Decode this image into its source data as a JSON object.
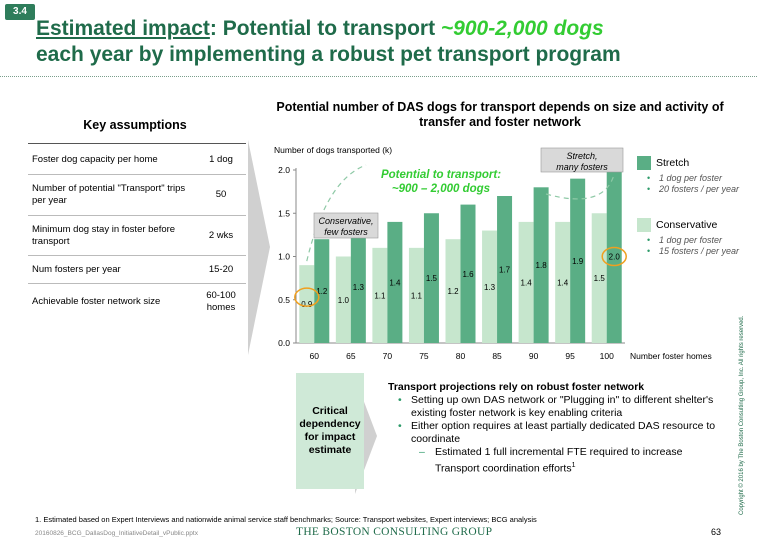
{
  "badge": "3.4",
  "title": {
    "part1": "Estimated impact",
    "part2": ": Potential to transport ",
    "highlight": "~900-2,000 dogs",
    "line2": "each year by implementing a robust pet transport program"
  },
  "assumptions": {
    "title": "Key assumptions",
    "rows": [
      {
        "label": "Foster dog capacity per home",
        "value": "1 dog"
      },
      {
        "label": "Number of potential \"Transport\" trips per year",
        "value": "50"
      },
      {
        "label": "Minimum dog stay in foster before transport",
        "value": "2 wks"
      },
      {
        "label": "Num fosters per year",
        "value": "15-20"
      },
      {
        "label": "Achievable foster network size",
        "value": "60-100 homes"
      }
    ]
  },
  "chart_title": "Potential number of DAS dogs for transport depends on size and activity of transfer and foster network",
  "chart_data": {
    "type": "bar",
    "title": "Potential number of DAS dogs for transport depends on size and activity of transfer and foster network",
    "ylabel": "Number of dogs transported (k)",
    "xlabel": "Number foster homes",
    "categories": [
      "60",
      "65",
      "70",
      "75",
      "80",
      "85",
      "90",
      "95",
      "100"
    ],
    "ylim": [
      0,
      2.0
    ],
    "yticks": [
      "0.0",
      "0.5",
      "1.0",
      "1.5",
      "2.0"
    ],
    "series": [
      {
        "name": "Conservative",
        "values": [
          0.9,
          1.0,
          1.1,
          1.1,
          1.2,
          1.3,
          1.4,
          1.4,
          1.5
        ],
        "labels": [
          "0.9",
          "1.0",
          "1.1",
          "1.1",
          "1.2",
          "1.3",
          "1.4",
          "1.4",
          "1.5"
        ],
        "color": "#c6e6cd"
      },
      {
        "name": "Stretch",
        "values": [
          1.2,
          1.3,
          1.4,
          1.5,
          1.6,
          1.7,
          1.8,
          1.9,
          2.0
        ],
        "labels": [
          "1.2",
          "1.3",
          "1.4",
          "1.5",
          "1.6",
          "1.7",
          "1.8",
          "1.9",
          "2.0"
        ],
        "color": "#5aae85"
      }
    ],
    "grid": false,
    "legend": "right",
    "annotations": {
      "potential": "Potential to transport: ~900 – 2,000 dogs",
      "conservative": "Conservative, few fosters",
      "stretch": "Stretch, many fosters"
    }
  },
  "legend": {
    "stretch": {
      "name": "Stretch",
      "bullets": [
        "1 dog per foster",
        "20 fosters / per year"
      ]
    },
    "conservative": {
      "name": "Conservative",
      "bullets": [
        "1 dog per foster",
        "15 fosters / per year"
      ]
    }
  },
  "critical": "Critical dependency for impact estimate",
  "transport": {
    "head": "Transport projections rely on robust foster network",
    "b1": "Setting up own DAS network or \"Plugging in\" to different shelter's existing foster network is key enabling criteria",
    "b2": "Either option requires at least partially dedicated DAS resource to coordinate",
    "sub": "Estimated 1 full incremental FTE required to increase Transport coordination efforts",
    "sup": "1"
  },
  "footnote": "1. Estimated based on Expert Interviews and nationwide animal service staff benchmarks; Source: Transport websites, Expert interviews; BCG analysis",
  "filename": "20160826_BCG_DallasDog_InitiativeDetail_vPublic.pptx",
  "brand": "THE BOSTON CONSULTING GROUP",
  "page": "63",
  "copyright": "Copyright © 2016 by The Boston Consulting Group, Inc. All rights reserved.",
  "colors": {
    "brand_green": "#1f6b4a",
    "highlight": "#33cc33",
    "stretch": "#5aae85",
    "conservative": "#c6e6cd",
    "callout": "#f0a020"
  }
}
